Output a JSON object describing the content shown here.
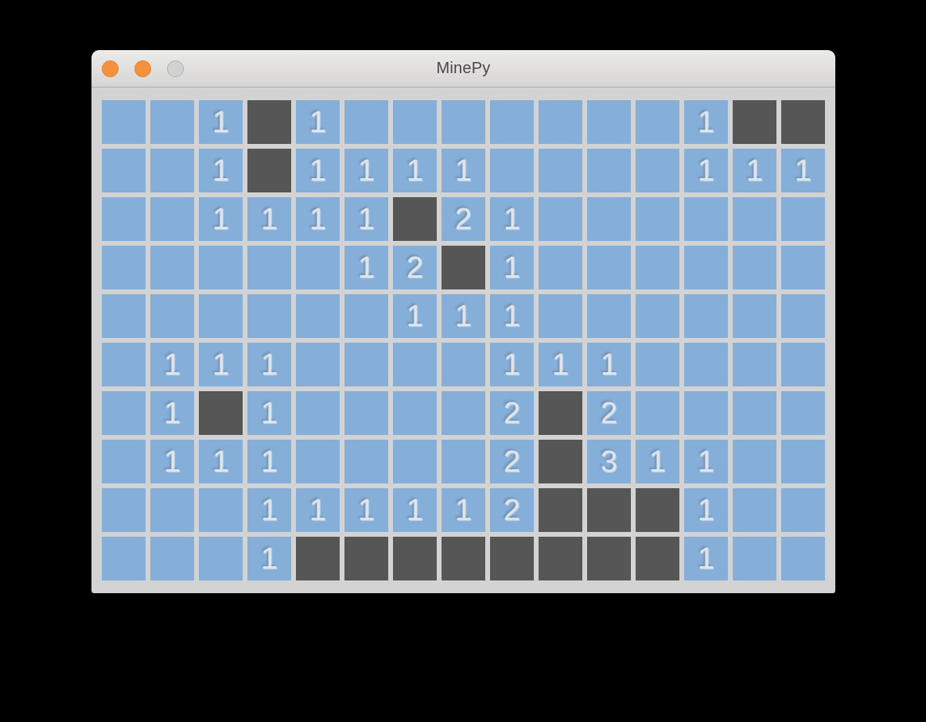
{
  "window": {
    "title": "MinePy",
    "controls": {
      "close": {
        "color": "#F5913C",
        "state": "enabled"
      },
      "minimize": {
        "color": "#F5913C",
        "state": "enabled"
      },
      "zoom": {
        "color": "#D2D2D2",
        "state": "disabled"
      }
    }
  },
  "board": {
    "rows": 10,
    "cols": 15,
    "legend": {
      ".": "covered-blue-cell",
      "D": "revealed-dark-cell",
      "digit": "blue cell showing adjacent mine count"
    },
    "cells": [
      "..1D1.......1DD",
      "..1D1111....111",
      "..1111D21......",
      ".....12D1......",
      "......111......",
      ".111....111....",
      ".1D1....2D2....",
      ".111....2D311..",
      "...111112DDD1..",
      "...1DDDDDDDD1.."
    ]
  },
  "colors": {
    "desktop_background": "#000000",
    "board_background": "#D3D3D3",
    "covered_cell": "#85AED8",
    "revealed_cell": "#565656",
    "number_text": "#DFE5EB",
    "titlebar_top": "#EBEBE9",
    "titlebar_bottom": "#D6D5D3",
    "titlebar_border": "#ABABAB",
    "title_text": "#48484B",
    "accent_orange": "#F5913C",
    "inactive_button": "#D2D2D2",
    "inactive_button_ring": "#B0B0B0"
  }
}
